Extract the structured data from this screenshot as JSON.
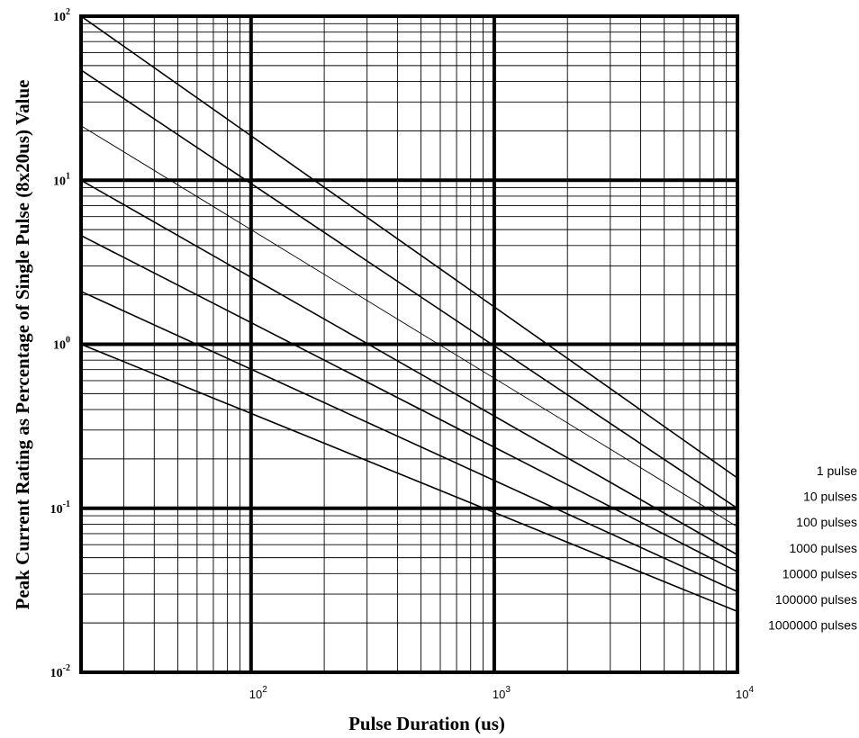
{
  "chart_data": {
    "type": "line",
    "xlabel": "Pulse Duration (us)",
    "ylabel": "Peak Current Rating as Percentage of Single Pulse (8x20us) Value",
    "x_scale": "log",
    "y_scale": "log",
    "xlim": [
      20,
      10000
    ],
    "ylim": [
      0.01,
      100
    ],
    "grid": true,
    "legend_position": "right",
    "x_ticks": [
      {
        "base": "10",
        "exp": "2",
        "value": 100
      },
      {
        "base": "10",
        "exp": "3",
        "value": 1000
      },
      {
        "base": "10",
        "exp": "4",
        "value": 10000
      }
    ],
    "y_ticks": [
      {
        "base": "10",
        "exp": "2",
        "value": 100
      },
      {
        "base": "10",
        "exp": "1",
        "value": 10
      },
      {
        "base": "10",
        "exp": "0",
        "value": 1
      },
      {
        "base": "10",
        "exp": "-1",
        "value": 0.1
      },
      {
        "base": "10",
        "exp": "-2",
        "value": 0.01
      }
    ],
    "series": [
      {
        "name": "1 pulse",
        "x": [
          20,
          10000
        ],
        "y": [
          100,
          0.153
        ]
      },
      {
        "name": "10 pulses",
        "x": [
          20,
          10000
        ],
        "y": [
          47,
          0.1
        ]
      },
      {
        "name": "100 pulses",
        "x": [
          20,
          10000
        ],
        "y": [
          21.5,
          0.077
        ]
      },
      {
        "name": "1000 pulses",
        "x": [
          20,
          10000
        ],
        "y": [
          10,
          0.052
        ]
      },
      {
        "name": "10000 pulses",
        "x": [
          20,
          10000
        ],
        "y": [
          4.6,
          0.041
        ]
      },
      {
        "name": "100000 pulses",
        "x": [
          20,
          10000
        ],
        "y": [
          2.1,
          0.031
        ]
      },
      {
        "name": "1000000 pulses",
        "x": [
          20,
          10000
        ],
        "y": [
          1.0,
          0.0235
        ]
      }
    ]
  }
}
